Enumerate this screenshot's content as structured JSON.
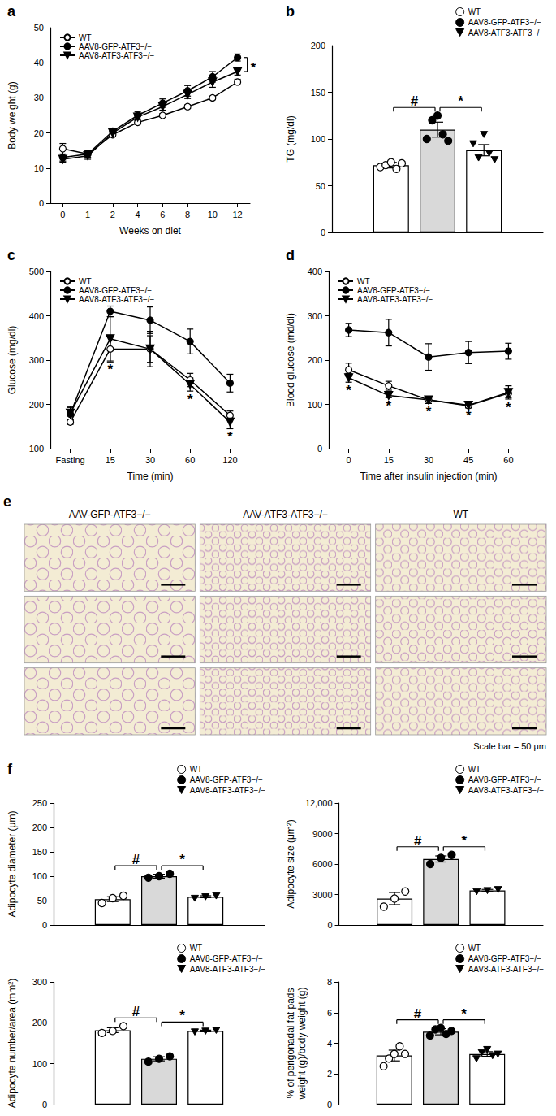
{
  "chart_data": [
    {
      "type": "line",
      "title": "a",
      "xlabel": "Weeks on diet",
      "ylabel": "Body weight (g)",
      "categories": [
        "0",
        "1",
        "2",
        "4",
        "6",
        "8",
        "10",
        "12"
      ],
      "ylim": [
        0,
        50
      ],
      "yticks": [
        0,
        10,
        20,
        30,
        40,
        50
      ],
      "grid": false,
      "legend": "upper left",
      "series": [
        {
          "name": "WT",
          "color": "#000000",
          "marker": "circle_open",
          "values": [
            15.5,
            14,
            19.5,
            23,
            25,
            27.5,
            30,
            34.5
          ],
          "errors": [
            1.5,
            1,
            0.5,
            0.5,
            0.5,
            0.5,
            0.5,
            0.8
          ]
        },
        {
          "name": "AAV8-GFP-ATF3−/−",
          "color": "#000000",
          "marker": "circle",
          "values": [
            13,
            14,
            20.5,
            25,
            28.5,
            32,
            36,
            41.5
          ],
          "errors": [
            1,
            1,
            0.5,
            1,
            1.2,
            1.5,
            1.5,
            1
          ]
        },
        {
          "name": "AAV8-ATF3-ATF3−/−",
          "color": "#000000",
          "marker": "triangle_down",
          "values": [
            12.5,
            13.5,
            20,
            24.5,
            27.5,
            31,
            34.5,
            37.5
          ],
          "errors": [
            0.8,
            1,
            0.5,
            0.8,
            1,
            1.2,
            1.5,
            1
          ]
        }
      ],
      "annotations": [
        {
          "label": "*",
          "between": [
            "AAV8-GFP-ATF3−/−",
            "AAV8-ATF3-ATF3−/−"
          ],
          "at": "12"
        }
      ]
    },
    {
      "type": "bar",
      "title": "b",
      "ylabel": "TG (mg/dl)",
      "categories": [
        null
      ],
      "ylim": [
        0,
        200
      ],
      "yticks": [
        0,
        50,
        100,
        150,
        200
      ],
      "grid": false,
      "legend": "upper right",
      "tick_labels": "y",
      "series": [
        {
          "name": "WT",
          "color": "#ffffff",
          "marker": "circle_open",
          "values": [
            72
          ],
          "errors": [
            3
          ],
          "points": [
            [
              70,
              72,
              75,
              68,
              74
            ]
          ]
        },
        {
          "name": "AAV8-GFP-ATF3−/−",
          "color": "#d9d9d9",
          "marker": "circle",
          "values": [
            110
          ],
          "errors": [
            8
          ],
          "points": [
            [
              100,
              120,
              125,
              105,
              98
            ]
          ]
        },
        {
          "name": "AAV8-ATF3-ATF3−/−",
          "color": "#ffffff",
          "marker": "triangle_down",
          "values": [
            88
          ],
          "errors": [
            6
          ],
          "points": [
            [
              95,
              80,
              105,
              85,
              78
            ]
          ]
        }
      ],
      "annotations": [
        {
          "label": "#",
          "between": [
            "WT",
            "AAV8-GFP-ATF3−/−"
          ]
        },
        {
          "label": "*",
          "between": [
            "AAV8-GFP-ATF3−/−",
            "AAV8-ATF3-ATF3−/−"
          ]
        }
      ]
    },
    {
      "type": "line",
      "title": "c",
      "xlabel": "Time (min)",
      "ylabel": "Glucose (mg/dl)",
      "categories": [
        "Fasting",
        "15",
        "30",
        "60",
        "120"
      ],
      "ylim": [
        100,
        500
      ],
      "yticks": [
        100,
        200,
        300,
        400,
        500
      ],
      "grid": false,
      "legend": "upper left",
      "series": [
        {
          "name": "WT",
          "color": "#000000",
          "marker": "circle_open",
          "values": [
            160,
            325,
            325,
            255,
            175
          ],
          "errors": [
            5,
            30,
            30,
            15,
            10
          ]
        },
        {
          "name": "AAV8-GFP-ATF3−/−",
          "color": "#000000",
          "marker": "circle",
          "values": [
            178,
            410,
            390,
            342,
            248
          ],
          "errors": [
            15,
            12,
            30,
            28,
            20
          ]
        },
        {
          "name": "AAV8-ATF3-ATF3−/−",
          "color": "#000000",
          "marker": "triangle_down",
          "values": [
            180,
            348,
            325,
            245,
            160
          ],
          "errors": [
            15,
            50,
            40,
            15,
            15
          ]
        }
      ],
      "annotations": [
        {
          "label": "*",
          "series": "AAV8-ATF3-ATF3−/−",
          "at": "15"
        },
        {
          "label": "*",
          "series": "AAV8-ATF3-ATF3−/−",
          "at": "60"
        },
        {
          "label": "*",
          "series": "AAV8-ATF3-ATF3−/−",
          "at": "120"
        }
      ]
    },
    {
      "type": "line",
      "title": "d",
      "xlabel": "Time after insulin injection (min)",
      "ylabel": "Blood glucose (md/dl)",
      "categories": [
        "0",
        "15",
        "30",
        "45",
        "60"
      ],
      "ylim": [
        0,
        400
      ],
      "yticks": [
        0,
        100,
        200,
        300,
        400
      ],
      "grid": false,
      "legend": "upper left",
      "series": [
        {
          "name": "WT",
          "color": "#000000",
          "marker": "circle_open",
          "values": [
            178,
            142,
            110,
            97,
            125
          ],
          "errors": [
            15,
            10,
            8,
            5,
            10
          ]
        },
        {
          "name": "AAV8-GFP-ATF3−/−",
          "color": "#000000",
          "marker": "circle",
          "values": [
            268,
            262,
            207,
            217,
            220
          ],
          "errors": [
            15,
            30,
            30,
            25,
            18
          ]
        },
        {
          "name": "AAV8-ATF3-ATF3−/−",
          "color": "#000000",
          "marker": "triangle_down",
          "values": [
            160,
            120,
            110,
            98,
            127
          ],
          "errors": [
            10,
            5,
            8,
            5,
            15
          ]
        }
      ],
      "annotations": [
        {
          "label": "*",
          "series": "AAV8-ATF3-ATF3−/−",
          "at": "0"
        },
        {
          "label": "*",
          "series": "AAV8-ATF3-ATF3−/−",
          "at": "15"
        },
        {
          "label": "*",
          "series": "AAV8-ATF3-ATF3−/−",
          "at": "30"
        },
        {
          "label": "*",
          "series": "AAV8-ATF3-ATF3−/−",
          "at": "45"
        },
        {
          "label": "*",
          "series": "AAV8-ATF3-ATF3−/−",
          "at": "60"
        }
      ]
    },
    {
      "type": "micrograph",
      "title": "e",
      "columns": [
        "AAV-GFP-ATF3−/−",
        "AAV-ATF3-ATF3−/−",
        "WT"
      ],
      "rows": 3,
      "scale_bar": "Scale bar = 50 μm"
    },
    {
      "type": "bar",
      "title": "f",
      "ylabel": "Adipocyte diameter (μm)",
      "categories": [
        null
      ],
      "ylim": [
        0,
        250
      ],
      "yticks": [
        0,
        50,
        100,
        150,
        200,
        250
      ],
      "grid": false,
      "legend": "upper right",
      "tick_labels": "y",
      "series": [
        {
          "name": "WT",
          "color": "#ffffff",
          "marker": "circle_open",
          "values": [
            53
          ],
          "errors": [
            5
          ],
          "points": [
            [
              45,
              55,
              60
            ]
          ]
        },
        {
          "name": "AAV8-GFP-ATF3−/−",
          "color": "#d9d9d9",
          "marker": "circle",
          "values": [
            100
          ],
          "errors": [
            4
          ],
          "points": [
            [
              97,
              100,
              105
            ]
          ]
        },
        {
          "name": "AAV8-ATF3-ATF3−/−",
          "color": "#ffffff",
          "marker": "triangle_down",
          "values": [
            58
          ],
          "errors": [
            2
          ],
          "points": [
            [
              55,
              58,
              60
            ]
          ]
        }
      ],
      "annotations": [
        {
          "label": "#",
          "between": [
            "WT",
            "AAV8-GFP-ATF3−/−"
          ]
        },
        {
          "label": "*",
          "between": [
            "AAV8-GFP-ATF3−/−",
            "AAV8-ATF3-ATF3−/−"
          ]
        }
      ]
    },
    {
      "type": "bar",
      "ylabel": "Adipocyte size (μm²)",
      "categories": [
        null
      ],
      "ylim": [
        0,
        12000
      ],
      "yticks": [
        0,
        3000,
        6000,
        9000,
        {
          "value": 12000,
          "label": "12,000"
        }
      ],
      "grid": false,
      "legend": "upper right",
      "tick_labels": "y",
      "series": [
        {
          "name": "WT",
          "color": "#ffffff",
          "marker": "circle_open",
          "values": [
            2600
          ],
          "errors": [
            600
          ],
          "points": [
            [
              1800,
              2600,
              3300
            ]
          ]
        },
        {
          "name": "AAV8-GFP-ATF3−/−",
          "color": "#d9d9d9",
          "marker": "circle",
          "values": [
            6500
          ],
          "errors": [
            300
          ],
          "points": [
            [
              6000,
              6600,
              6900
            ]
          ]
        },
        {
          "name": "AAV8-ATF3-ATF3−/−",
          "color": "#ffffff",
          "marker": "triangle_down",
          "values": [
            3400
          ],
          "errors": [
            100
          ],
          "points": [
            [
              3300,
              3400,
              3500
            ]
          ]
        }
      ],
      "annotations": [
        {
          "label": "#",
          "between": [
            "WT",
            "AAV8-GFP-ATF3−/−"
          ]
        },
        {
          "label": "*",
          "between": [
            "AAV8-GFP-ATF3−/−",
            "AAV8-ATF3-ATF3−/−"
          ]
        }
      ]
    },
    {
      "type": "bar",
      "ylabel": "Adipocyte number/area (mm²)",
      "categories": [
        null
      ],
      "ylim": [
        0,
        300
      ],
      "yticks": [
        0,
        100,
        200,
        300
      ],
      "grid": false,
      "legend": "upper right",
      "tick_labels": "y",
      "series": [
        {
          "name": "WT",
          "color": "#ffffff",
          "marker": "circle_open",
          "values": [
            182
          ],
          "errors": [
            6
          ],
          "points": [
            [
              175,
              180,
              192
            ]
          ]
        },
        {
          "name": "AAV8-GFP-ATF3−/−",
          "color": "#d9d9d9",
          "marker": "circle",
          "values": [
            112
          ],
          "errors": [
            5
          ],
          "points": [
            [
              105,
              112,
              118
            ]
          ]
        },
        {
          "name": "AAV8-ATF3-ATF3−/−",
          "color": "#ffffff",
          "marker": "triangle_down",
          "values": [
            180
          ],
          "errors": [
            2
          ],
          "points": [
            [
              178,
              180,
              182
            ]
          ]
        }
      ],
      "annotations": [
        {
          "label": "#",
          "between": [
            "WT",
            "AAV8-GFP-ATF3−/−"
          ]
        },
        {
          "label": "*",
          "between": [
            "AAV8-GFP-ATF3−/−",
            "AAV8-ATF3-ATF3−/−"
          ]
        }
      ]
    },
    {
      "type": "bar",
      "ylabel": "% of perigonadal fat pads weight (g)/body weight (g)",
      "categories": [
        null
      ],
      "ylim": [
        0,
        8
      ],
      "yticks": [
        0,
        2,
        4,
        6,
        8
      ],
      "grid": false,
      "legend": "upper right",
      "tick_labels": "y",
      "series": [
        {
          "name": "WT",
          "color": "#ffffff",
          "marker": "circle_open",
          "values": [
            3.2
          ],
          "errors": [
            0.35
          ],
          "points": [
            [
              2.5,
              3.0,
              3.3,
              3.8,
              3.3
            ]
          ]
        },
        {
          "name": "AAV8-GFP-ATF3−/−",
          "color": "#d9d9d9",
          "marker": "circle",
          "values": [
            4.75
          ],
          "errors": [
            0.2
          ],
          "points": [
            [
              4.5,
              4.9,
              5.0,
              4.6,
              4.8
            ]
          ]
        },
        {
          "name": "AAV8-ATF3-ATF3−/−",
          "color": "#ffffff",
          "marker": "triangle_down",
          "values": [
            3.3
          ],
          "errors": [
            0.15
          ],
          "points": [
            [
              3.0,
              3.4,
              3.6,
              3.2,
              3.3
            ]
          ]
        }
      ],
      "annotations": [
        {
          "label": "#",
          "between": [
            "WT",
            "AAV8-GFP-ATF3−/−"
          ]
        },
        {
          "label": "*",
          "between": [
            "AAV8-GFP-ATF3−/−",
            "AAV8-ATF3-ATF3−/−"
          ]
        }
      ]
    }
  ]
}
